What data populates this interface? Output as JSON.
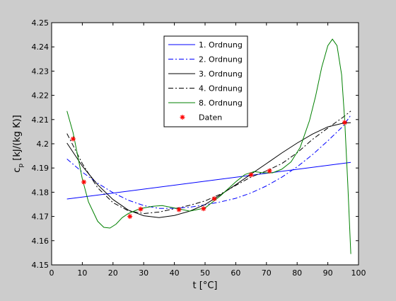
{
  "chart_data": {
    "type": "line",
    "title": "",
    "xlabel": "t [°C]",
    "ylabel": {
      "main": "c",
      "sub": "p",
      "rest": " [kJ/(kg K)]"
    },
    "xlim": [
      0,
      100
    ],
    "ylim": [
      4.15,
      4.25
    ],
    "x_ticks": [
      0,
      10,
      20,
      30,
      40,
      50,
      60,
      70,
      80,
      90,
      100
    ],
    "y_ticks": [
      4.15,
      4.16,
      4.17,
      4.18,
      4.19,
      4.2,
      4.21,
      4.22,
      4.23,
      4.24,
      4.25
    ],
    "grid": false,
    "legend_position": "top-center",
    "series": [
      {
        "name": "1. Ordnung",
        "color": "#0000ff",
        "dash": "solid",
        "x": [
          5,
          97.5
        ],
        "y": [
          4.1772,
          4.1923
        ]
      },
      {
        "name": "2. Ordnung",
        "color": "#0000ff",
        "dash": "dashdot",
        "x": [
          5,
          10,
          15,
          20,
          25,
          30,
          35,
          40,
          45,
          50,
          55,
          60,
          65,
          70,
          75,
          80,
          85,
          90,
          95,
          97.5
        ],
        "y": [
          4.1937,
          4.1883,
          4.1837,
          4.1798,
          4.1767,
          4.1745,
          4.1733,
          4.1734,
          4.1738,
          4.1748,
          4.176,
          4.1775,
          4.1797,
          4.1826,
          4.1862,
          4.1905,
          4.1955,
          4.2012,
          4.2073,
          4.2118
        ]
      },
      {
        "name": "3. Ordnung",
        "color": "#000000",
        "dash": "solid",
        "x": [
          5,
          10,
          15,
          20,
          25,
          30,
          35,
          40,
          45,
          50,
          55,
          60,
          65,
          70,
          75,
          80,
          85,
          90,
          95,
          97.5
        ],
        "y": [
          4.2003,
          4.1908,
          4.1831,
          4.177,
          4.1726,
          4.1703,
          4.1695,
          4.1704,
          4.1722,
          4.1749,
          4.1789,
          4.1831,
          4.1875,
          4.1918,
          4.1962,
          4.2003,
          4.204,
          4.207,
          4.2085,
          4.2087
        ]
      },
      {
        "name": "4. Ordnung",
        "color": "#000000",
        "dash": "dashdot",
        "x": [
          5,
          10,
          15,
          20,
          25,
          30,
          35,
          40,
          45,
          50,
          55,
          60,
          65,
          70,
          75,
          80,
          85,
          90,
          95,
          97.5
        ],
        "y": [
          4.2042,
          4.1918,
          4.1818,
          4.1757,
          4.1723,
          4.1712,
          4.1718,
          4.1732,
          4.1746,
          4.1764,
          4.1792,
          4.1828,
          4.1863,
          4.1888,
          4.1918,
          4.1963,
          4.2018,
          4.2065,
          4.211,
          4.2135
        ]
      },
      {
        "name": "8. Ordnung",
        "color": "#008000",
        "dash": "solid",
        "x": [
          5,
          7,
          10,
          12,
          15,
          17,
          19,
          21,
          23,
          25,
          28,
          30,
          33,
          36,
          40,
          45,
          50,
          55,
          60,
          63,
          66,
          69,
          72,
          75,
          78,
          81,
          84,
          86,
          88,
          90,
          91.5,
          93,
          94.5,
          95.5,
          96.5,
          97.5
        ],
        "y": [
          4.2135,
          4.2045,
          4.1855,
          4.176,
          4.168,
          4.1655,
          4.1652,
          4.1668,
          4.1695,
          4.1712,
          4.1728,
          4.1735,
          4.1742,
          4.1745,
          4.1735,
          4.1722,
          4.1735,
          4.1785,
          4.1843,
          4.1873,
          4.1885,
          4.188,
          4.188,
          4.1895,
          4.1925,
          4.1985,
          4.2095,
          4.2195,
          4.2315,
          4.2405,
          4.2432,
          4.2405,
          4.2285,
          4.2095,
          4.1835,
          4.1545
        ]
      }
    ],
    "data_points": {
      "name": "Daten",
      "color": "#ff0000",
      "marker": "*",
      "x": [
        7,
        10.5,
        25.5,
        29,
        41.5,
        49.5,
        53,
        65,
        71,
        95.5
      ],
      "y": [
        4.202,
        4.1842,
        4.17,
        4.173,
        4.1728,
        4.1732,
        4.1773,
        4.1872,
        4.1888,
        4.2088
      ]
    }
  }
}
